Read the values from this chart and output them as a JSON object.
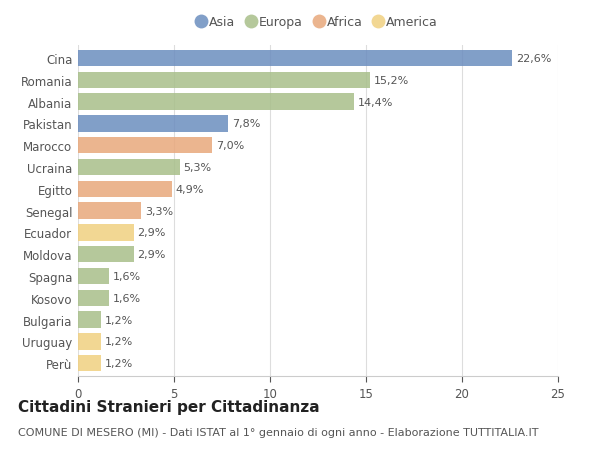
{
  "countries": [
    "Cina",
    "Romania",
    "Albania",
    "Pakistan",
    "Marocco",
    "Ucraina",
    "Egitto",
    "Senegal",
    "Ecuador",
    "Moldova",
    "Spagna",
    "Kosovo",
    "Bulgaria",
    "Uruguay",
    "Perù"
  ],
  "values": [
    22.6,
    15.2,
    14.4,
    7.8,
    7.0,
    5.3,
    4.9,
    3.3,
    2.9,
    2.9,
    1.6,
    1.6,
    1.2,
    1.2,
    1.2
  ],
  "labels": [
    "22,6%",
    "15,2%",
    "14,4%",
    "7,8%",
    "7,0%",
    "5,3%",
    "4,9%",
    "3,3%",
    "2,9%",
    "2,9%",
    "1,6%",
    "1,6%",
    "1,2%",
    "1,2%",
    "1,2%"
  ],
  "continents": [
    "Asia",
    "Europa",
    "Europa",
    "Asia",
    "Africa",
    "Europa",
    "Africa",
    "Africa",
    "America",
    "Europa",
    "Europa",
    "Europa",
    "Europa",
    "America",
    "America"
  ],
  "colors": {
    "Asia": "#6b8ebf",
    "Europa": "#a8bf8a",
    "Africa": "#e8a87c",
    "America": "#f0d080"
  },
  "legend_order": [
    "Asia",
    "Europa",
    "Africa",
    "America"
  ],
  "title": "Cittadini Stranieri per Cittadinanza",
  "subtitle": "COMUNE DI MESERO (MI) - Dati ISTAT al 1° gennaio di ogni anno - Elaborazione TUTTITALIA.IT",
  "xlim": [
    0,
    25
  ],
  "xticks": [
    0,
    5,
    10,
    15,
    20,
    25
  ],
  "background_color": "#ffffff",
  "bar_height": 0.75,
  "title_fontsize": 11,
  "subtitle_fontsize": 8,
  "label_fontsize": 8,
  "tick_fontsize": 8.5,
  "legend_fontsize": 9
}
